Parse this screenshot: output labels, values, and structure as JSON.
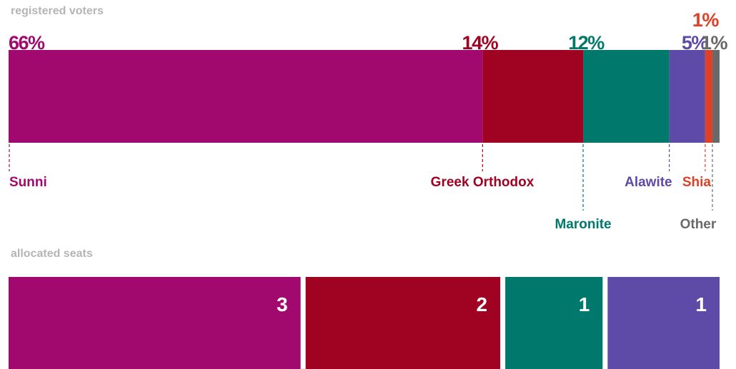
{
  "section_labels": {
    "voters": "registered voters",
    "seats": "allocated seats"
  },
  "chart_data": [
    {
      "type": "bar",
      "orientation": "horizontal-stacked",
      "title": "registered voters",
      "unit": "%",
      "categories": [
        "Sunni",
        "Greek Orthodox",
        "Maronite",
        "Alawite",
        "Shia",
        "Other"
      ],
      "values": [
        66,
        14,
        12,
        5,
        1,
        1
      ],
      "labels": [
        "66%",
        "14%",
        "12%",
        "5%",
        "1%",
        "1%"
      ],
      "colors": [
        "#a1096e",
        "#a00322",
        "#00786c",
        "#5e4ba7",
        "#e04026",
        "#696969"
      ]
    },
    {
      "type": "bar",
      "orientation": "horizontal-stacked",
      "title": "allocated seats",
      "categories": [
        "Sunni",
        "Greek Orthodox",
        "Maronite",
        "Alawite"
      ],
      "values": [
        3,
        2,
        1,
        1
      ],
      "colors": [
        "#a1096e",
        "#a00322",
        "#00786c",
        "#5e4ba7"
      ]
    }
  ]
}
